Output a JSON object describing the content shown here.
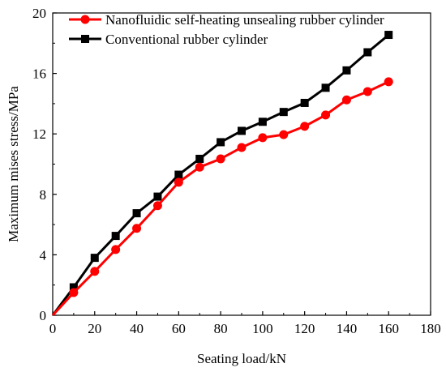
{
  "chart_data": {
    "type": "line",
    "title": "",
    "xlabel": "Seating load/kN",
    "ylabel": "Maximum mises stress/MPa",
    "xlim": [
      0,
      180
    ],
    "ylim": [
      0,
      20
    ],
    "xticks": [
      0,
      20,
      40,
      60,
      80,
      100,
      120,
      140,
      160,
      180
    ],
    "yticks": [
      0,
      4,
      8,
      12,
      16,
      20
    ],
    "grid": false,
    "legend_position": "top-left",
    "x": [
      0,
      10,
      20,
      30,
      40,
      50,
      60,
      70,
      80,
      90,
      100,
      110,
      120,
      130,
      140,
      150,
      160
    ],
    "series": [
      {
        "name": "Nanofluidic self-heating unsealing rubber cylinder",
        "color": "#ff0000",
        "marker": "circle",
        "values": [
          0,
          1.5,
          2.9,
          4.35,
          5.75,
          7.25,
          8.8,
          9.8,
          10.35,
          11.1,
          11.75,
          11.95,
          12.5,
          13.25,
          14.25,
          14.8,
          15.45
        ]
      },
      {
        "name": "Conventional rubber cylinder",
        "color": "#000000",
        "marker": "square",
        "values": [
          0,
          1.85,
          3.8,
          5.25,
          6.75,
          7.85,
          9.3,
          10.35,
          11.45,
          12.2,
          12.8,
          13.45,
          14.05,
          15.05,
          16.2,
          17.4,
          18.55
        ]
      }
    ]
  }
}
